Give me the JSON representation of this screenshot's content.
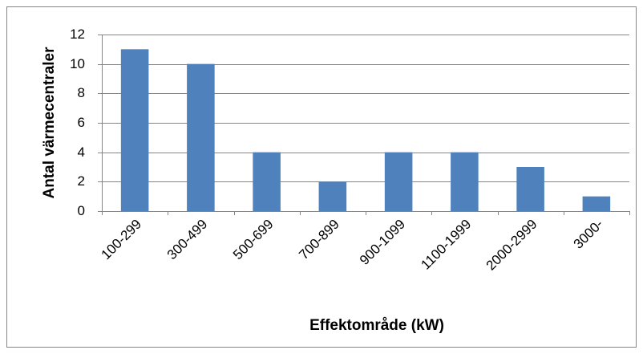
{
  "chart_data": {
    "type": "bar",
    "x_label": "Effektområde (kW)",
    "y_label": "Antal värmecentraler",
    "categories": [
      "100-299",
      "300-499",
      "500-699",
      "700-899",
      "900-1099",
      "1100-1999",
      "2000-2999",
      "3000-"
    ],
    "values": [
      11,
      10,
      4,
      2,
      4,
      4,
      3,
      1
    ],
    "color": "#4f81bd",
    "ylim": [
      0,
      12
    ],
    "yticks": [
      0,
      2,
      4,
      6,
      8,
      10,
      12
    ],
    "grid": true
  }
}
